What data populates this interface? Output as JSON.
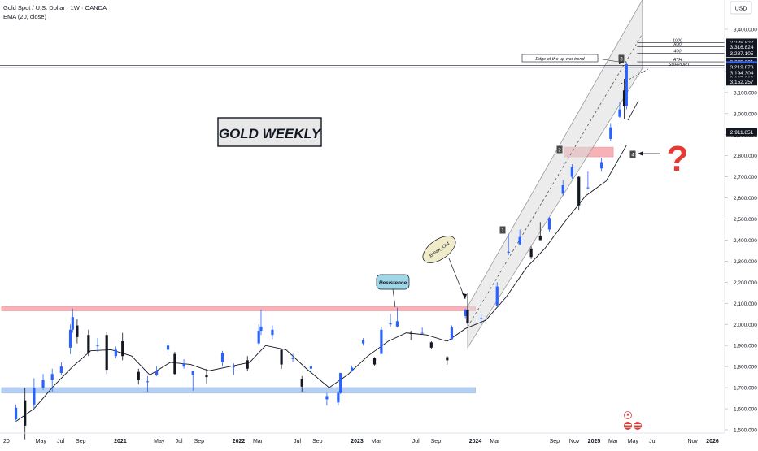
{
  "header": {
    "symbol_title": "Gold Spot / U.S. Dollar · 1W · OANDA",
    "indicator": "EMA (20, close)",
    "currency": "USD"
  },
  "chart_data": {
    "type": "candlestick",
    "y_axis": {
      "ylim": [
        1500,
        3400
      ],
      "ticks": [
        1500,
        1600,
        1700,
        1800,
        1900,
        2000,
        2100,
        2200,
        2300,
        2400,
        2500,
        2600,
        2700,
        2800,
        2900,
        3000,
        3100,
        3200,
        3300,
        3400
      ],
      "tick_labels": [
        "1,500.000",
        "1,600.000",
        "1,700.000",
        "1,800.000",
        "1,900.000",
        "2,000.000",
        "2,100.000",
        "2,200.000",
        "2,300.000",
        "2,400.000",
        "2,500.000",
        "2,600.000",
        "2,700.000",
        "2,800.000",
        "2,900.000",
        "3,000.000",
        "3,100.000",
        "3,200.000",
        "3,300.000",
        "3,400.000"
      ]
    },
    "x_axis": {
      "labels": [
        {
          "text": "20",
          "date": "2020-01-01"
        },
        {
          "text": "May",
          "date": "2020-05-01"
        },
        {
          "text": "Jul",
          "date": "2020-07-01"
        },
        {
          "text": "Sep",
          "date": "2020-09-01"
        },
        {
          "text": "2021",
          "date": "2021-01-01"
        },
        {
          "text": "May",
          "date": "2021-05-01"
        },
        {
          "text": "Jul",
          "date": "2021-07-01"
        },
        {
          "text": "Sep",
          "date": "2021-09-01"
        },
        {
          "text": "2022",
          "date": "2022-01-01"
        },
        {
          "text": "Mar",
          "date": "2022-03-01"
        },
        {
          "text": "Jul",
          "date": "2022-07-01"
        },
        {
          "text": "Sep",
          "date": "2022-09-01"
        },
        {
          "text": "2023",
          "date": "2023-01-01"
        },
        {
          "text": "Mar",
          "date": "2023-03-01"
        },
        {
          "text": "Jul",
          "date": "2023-07-01"
        },
        {
          "text": "Sep",
          "date": "2023-09-01"
        },
        {
          "text": "2024",
          "date": "2024-01-01"
        },
        {
          "text": "Mar",
          "date": "2024-03-01"
        },
        {
          "text": "Sep",
          "date": "2024-09-01"
        },
        {
          "text": "Nov",
          "date": "2024-11-01"
        },
        {
          "text": "2025",
          "date": "2025-01-01"
        },
        {
          "text": "Mar",
          "date": "2025-03-01"
        },
        {
          "text": "May",
          "date": "2025-05-01"
        },
        {
          "text": "Jul",
          "date": "2025-07-01"
        },
        {
          "text": "Nov",
          "date": "2025-11-01"
        },
        {
          "text": "2026",
          "date": "2026-01-01"
        }
      ]
    },
    "series": [
      {
        "kind": "candles",
        "points": [
          {
            "date": "2020-02-14",
            "o": 1550,
            "h": 1620,
            "l": 1545,
            "c": 1605
          },
          {
            "date": "2020-03-13",
            "o": 1640,
            "h": 1700,
            "l": 1455,
            "c": 1520
          },
          {
            "date": "2020-04-10",
            "o": 1620,
            "h": 1745,
            "l": 1600,
            "c": 1700
          },
          {
            "date": "2020-05-08",
            "o": 1700,
            "h": 1765,
            "l": 1690,
            "c": 1735
          },
          {
            "date": "2020-06-05",
            "o": 1735,
            "h": 1790,
            "l": 1680,
            "c": 1765
          },
          {
            "date": "2020-07-03",
            "o": 1770,
            "h": 1820,
            "l": 1760,
            "c": 1800
          },
          {
            "date": "2020-07-31",
            "o": 1890,
            "h": 2000,
            "l": 1860,
            "c": 1975
          },
          {
            "date": "2020-08-07",
            "o": 1975,
            "h": 2075,
            "l": 1960,
            "c": 2035
          },
          {
            "date": "2020-08-21",
            "o": 1995,
            "h": 2025,
            "l": 1910,
            "c": 1940
          },
          {
            "date": "2020-09-25",
            "o": 1950,
            "h": 1975,
            "l": 1850,
            "c": 1865
          },
          {
            "date": "2020-10-23",
            "o": 1900,
            "h": 1935,
            "l": 1870,
            "c": 1900
          },
          {
            "date": "2020-11-20",
            "o": 1950,
            "h": 1965,
            "l": 1765,
            "c": 1785
          },
          {
            "date": "2020-12-18",
            "o": 1850,
            "h": 1895,
            "l": 1840,
            "c": 1880
          },
          {
            "date": "2021-01-08",
            "o": 1920,
            "h": 1960,
            "l": 1830,
            "c": 1850
          },
          {
            "date": "2021-02-26",
            "o": 1775,
            "h": 1790,
            "l": 1715,
            "c": 1735
          },
          {
            "date": "2021-03-26",
            "o": 1730,
            "h": 1755,
            "l": 1680,
            "c": 1730
          },
          {
            "date": "2021-04-23",
            "o": 1760,
            "h": 1800,
            "l": 1755,
            "c": 1780
          },
          {
            "date": "2021-05-28",
            "o": 1880,
            "h": 1915,
            "l": 1865,
            "c": 1900
          },
          {
            "date": "2021-06-18",
            "o": 1860,
            "h": 1870,
            "l": 1760,
            "c": 1765
          },
          {
            "date": "2021-07-16",
            "o": 1800,
            "h": 1835,
            "l": 1790,
            "c": 1815
          },
          {
            "date": "2021-08-13",
            "o": 1760,
            "h": 1780,
            "l": 1685,
            "c": 1780
          },
          {
            "date": "2021-09-24",
            "o": 1760,
            "h": 1790,
            "l": 1720,
            "c": 1750
          },
          {
            "date": "2021-11-12",
            "o": 1820,
            "h": 1875,
            "l": 1800,
            "c": 1865
          },
          {
            "date": "2021-12-17",
            "o": 1800,
            "h": 1815,
            "l": 1760,
            "c": 1800
          },
          {
            "date": "2022-01-28",
            "o": 1830,
            "h": 1850,
            "l": 1780,
            "c": 1790
          },
          {
            "date": "2022-03-04",
            "o": 1910,
            "h": 2000,
            "l": 1900,
            "c": 1970
          },
          {
            "date": "2022-03-11",
            "o": 1970,
            "h": 2070,
            "l": 1950,
            "c": 1990
          },
          {
            "date": "2022-04-15",
            "o": 1950,
            "h": 1995,
            "l": 1930,
            "c": 1975
          },
          {
            "date": "2022-05-13",
            "o": 1880,
            "h": 1885,
            "l": 1790,
            "c": 1810
          },
          {
            "date": "2022-06-17",
            "o": 1840,
            "h": 1860,
            "l": 1820,
            "c": 1840
          },
          {
            "date": "2022-07-15",
            "o": 1740,
            "h": 1755,
            "l": 1680,
            "c": 1705
          },
          {
            "date": "2022-08-12",
            "o": 1790,
            "h": 1810,
            "l": 1770,
            "c": 1800
          },
          {
            "date": "2022-09-30",
            "o": 1645,
            "h": 1675,
            "l": 1615,
            "c": 1660
          },
          {
            "date": "2022-11-04",
            "o": 1630,
            "h": 1685,
            "l": 1615,
            "c": 1675
          },
          {
            "date": "2022-11-11",
            "o": 1675,
            "h": 1770,
            "l": 1670,
            "c": 1770
          },
          {
            "date": "2022-12-16",
            "o": 1780,
            "h": 1805,
            "l": 1775,
            "c": 1795
          },
          {
            "date": "2023-01-20",
            "o": 1910,
            "h": 1935,
            "l": 1900,
            "c": 1925
          },
          {
            "date": "2023-02-24",
            "o": 1840,
            "h": 1845,
            "l": 1805,
            "c": 1810
          },
          {
            "date": "2023-03-17",
            "o": 1860,
            "h": 1990,
            "l": 1860,
            "c": 1975
          },
          {
            "date": "2023-04-14",
            "o": 2000,
            "h": 2050,
            "l": 1990,
            "c": 2005
          },
          {
            "date": "2023-05-05",
            "o": 1990,
            "h": 2080,
            "l": 1985,
            "c": 2015
          },
          {
            "date": "2023-06-16",
            "o": 1960,
            "h": 1970,
            "l": 1925,
            "c": 1955
          },
          {
            "date": "2023-07-21",
            "o": 1960,
            "h": 1985,
            "l": 1955,
            "c": 1960
          },
          {
            "date": "2023-08-18",
            "o": 1915,
            "h": 1920,
            "l": 1885,
            "c": 1890
          },
          {
            "date": "2023-10-06",
            "o": 1845,
            "h": 1850,
            "l": 1810,
            "c": 1830
          },
          {
            "date": "2023-10-20",
            "o": 1930,
            "h": 1995,
            "l": 1925,
            "c": 1985
          },
          {
            "date": "2023-12-01",
            "o": 2040,
            "h": 2075,
            "l": 2030,
            "c": 2070
          },
          {
            "date": "2023-12-08",
            "o": 2070,
            "h": 2150,
            "l": 2000,
            "c": 2005
          },
          {
            "date": "2024-01-19",
            "o": 2030,
            "h": 2050,
            "l": 2010,
            "c": 2030
          },
          {
            "date": "2024-03-08",
            "o": 2090,
            "h": 2200,
            "l": 2085,
            "c": 2180
          },
          {
            "date": "2024-04-12",
            "o": 2340,
            "h": 2430,
            "l": 2330,
            "c": 2345
          },
          {
            "date": "2024-05-17",
            "o": 2380,
            "h": 2450,
            "l": 2375,
            "c": 2415
          },
          {
            "date": "2024-06-21",
            "o": 2360,
            "h": 2370,
            "l": 2310,
            "c": 2320
          },
          {
            "date": "2024-07-19",
            "o": 2420,
            "h": 2485,
            "l": 2400,
            "c": 2400
          },
          {
            "date": "2024-08-16",
            "o": 2450,
            "h": 2510,
            "l": 2440,
            "c": 2505
          },
          {
            "date": "2024-09-27",
            "o": 2620,
            "h": 2685,
            "l": 2610,
            "c": 2660
          },
          {
            "date": "2024-10-25",
            "o": 2700,
            "h": 2760,
            "l": 2690,
            "c": 2745
          },
          {
            "date": "2024-11-15",
            "o": 2700,
            "h": 2705,
            "l": 2540,
            "c": 2565
          },
          {
            "date": "2024-12-13",
            "o": 2650,
            "h": 2725,
            "l": 2640,
            "c": 2650
          },
          {
            "date": "2025-01-24",
            "o": 2740,
            "h": 2790,
            "l": 2725,
            "c": 2770
          },
          {
            "date": "2025-02-21",
            "o": 2880,
            "h": 2955,
            "l": 2870,
            "c": 2935
          },
          {
            "date": "2025-03-21",
            "o": 2985,
            "h": 3055,
            "l": 2980,
            "c": 3020
          },
          {
            "date": "2025-04-04",
            "o": 3110,
            "h": 3165,
            "l": 2975,
            "c": 3035
          },
          {
            "date": "2025-04-11",
            "o": 3035,
            "h": 3245,
            "l": 3020,
            "c": 3235
          }
        ]
      },
      {
        "kind": "ema_line",
        "name": "EMA (20, close)",
        "points": [
          {
            "date": "2020-02-14",
            "v": 1540
          },
          {
            "date": "2020-04-10",
            "v": 1600
          },
          {
            "date": "2020-06-05",
            "v": 1700
          },
          {
            "date": "2020-08-07",
            "v": 1800
          },
          {
            "date": "2020-10-02",
            "v": 1875
          },
          {
            "date": "2020-12-04",
            "v": 1880
          },
          {
            "date": "2021-02-05",
            "v": 1850
          },
          {
            "date": "2021-04-02",
            "v": 1760
          },
          {
            "date": "2021-06-04",
            "v": 1820
          },
          {
            "date": "2021-08-06",
            "v": 1810
          },
          {
            "date": "2021-10-01",
            "v": 1780
          },
          {
            "date": "2021-12-03",
            "v": 1800
          },
          {
            "date": "2022-02-04",
            "v": 1820
          },
          {
            "date": "2022-03-25",
            "v": 1900
          },
          {
            "date": "2022-05-27",
            "v": 1880
          },
          {
            "date": "2022-07-29",
            "v": 1790
          },
          {
            "date": "2022-10-07",
            "v": 1700
          },
          {
            "date": "2022-12-02",
            "v": 1760
          },
          {
            "date": "2023-02-03",
            "v": 1850
          },
          {
            "date": "2023-04-07",
            "v": 1920
          },
          {
            "date": "2023-06-02",
            "v": 1960
          },
          {
            "date": "2023-08-04",
            "v": 1950
          },
          {
            "date": "2023-10-06",
            "v": 1920
          },
          {
            "date": "2023-12-01",
            "v": 1980
          },
          {
            "date": "2024-02-02",
            "v": 2020
          },
          {
            "date": "2024-04-05",
            "v": 2130
          },
          {
            "date": "2024-06-07",
            "v": 2270
          },
          {
            "date": "2024-08-02",
            "v": 2360
          },
          {
            "date": "2024-10-04",
            "v": 2490
          },
          {
            "date": "2024-12-06",
            "v": 2610
          },
          {
            "date": "2025-02-07",
            "v": 2680
          },
          {
            "date": "2025-04-11",
            "v": 2850
          }
        ]
      }
    ],
    "channel": {
      "lower": [
        {
          "date": "2023-12-08",
          "v": 1890
        },
        {
          "date": "2025-05-30",
          "v": 3215
        }
      ],
      "upper": [
        {
          "date": "2023-12-08",
          "v": 2085
        },
        {
          "date": "2025-05-30",
          "v": 3540
        }
      ],
      "mid": [
        {
          "date": "2023-12-08",
          "v": 1988
        },
        {
          "date": "2025-05-30",
          "v": 3378
        }
      ]
    },
    "zones": [
      {
        "name": "resistance-zone",
        "from": "2020-01-01",
        "to": "2024-01-01",
        "low": 2065,
        "high": 2085,
        "color": "#f4a5aa"
      },
      {
        "name": "support-zone",
        "from": "2020-01-01",
        "to": "2024-01-01",
        "low": 1675,
        "high": 1700,
        "color": "#a9c6ec"
      },
      {
        "name": "retest-zone",
        "from": "2024-10-01",
        "to": "2025-03-01",
        "low": 2795,
        "high": 2840,
        "color": "#f4a5aa"
      }
    ],
    "price_levels": [
      {
        "value": 3336.637,
        "label": "3,336.637",
        "style": "dark"
      },
      {
        "value": 3316.824,
        "label": "3,316.824",
        "style": "dark"
      },
      {
        "value": 3287.105,
        "label": "3,287.105",
        "style": "dark"
      },
      {
        "value": 3245.681,
        "label": "3,245.681",
        "style": "dark"
      },
      {
        "value": 3229.135,
        "label": "3,229.135",
        "style": "blue"
      },
      {
        "value": 3219.873,
        "label": "3,219.873",
        "style": "dark"
      },
      {
        "value": 3194.304,
        "label": "3,194.304",
        "style": "dark"
      },
      {
        "value": 3167.219,
        "label": "3,167.219",
        "style": "dark"
      },
      {
        "value": 3152.257,
        "label": "3,152.257",
        "style": "dark"
      },
      {
        "value": 2911.851,
        "label": "2,911.851",
        "style": "dark"
      }
    ],
    "countdown_label": "32:11h",
    "annotations": {
      "title": "GOLD WEEKLY",
      "resistence": "Resistence",
      "breakout": "Break_Out",
      "edge_label": "Edge of the up war trend",
      "label_1000": "1000",
      "label_800": "800",
      "label_400": "400",
      "label_ath": "ATH",
      "label_support": "SUPPORT",
      "question": "?",
      "markers": [
        "1",
        "2",
        "3",
        "4"
      ]
    },
    "colors": {
      "up": "#2962ff",
      "down": "#131722",
      "ema": "#131722",
      "channel_fill": "#dcdcdc",
      "question": "#e53935"
    }
  }
}
